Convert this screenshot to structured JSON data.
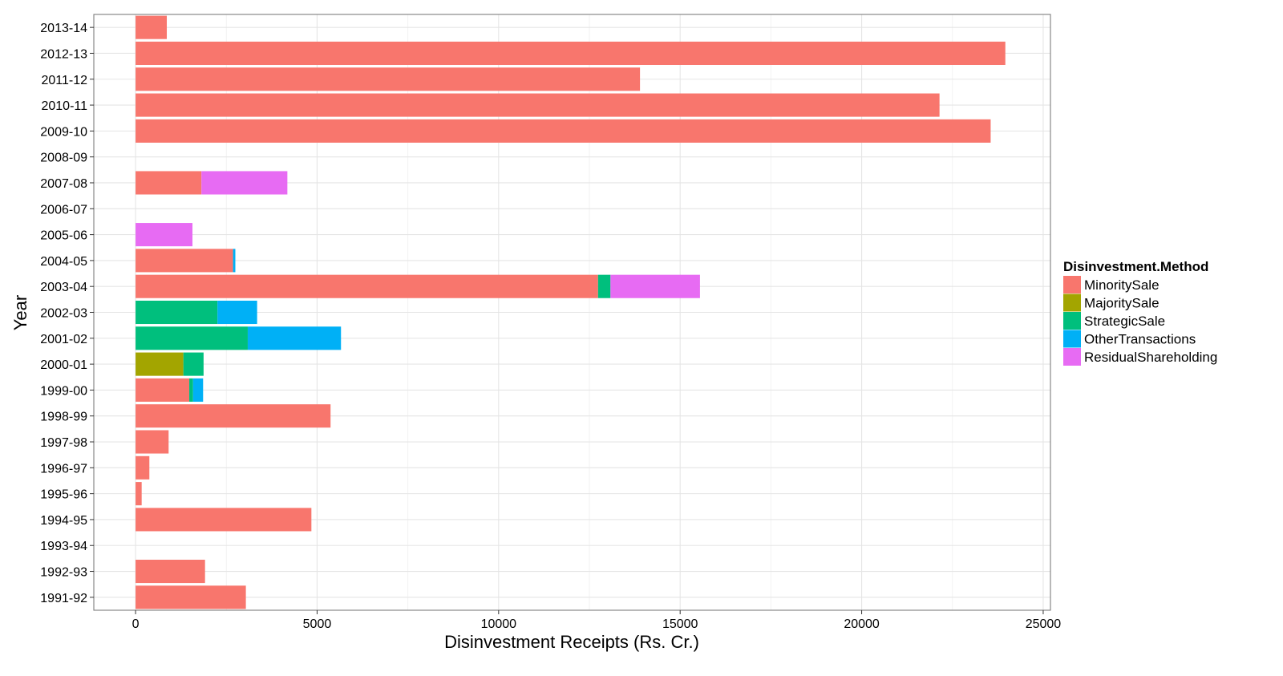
{
  "chart_data": {
    "type": "bar",
    "orientation": "horizontal",
    "stacked": true,
    "xlabel": "Disinvestment Receipts (Rs. Cr.)",
    "ylabel": "Year",
    "xlim": [
      -1150,
      25200
    ],
    "x_ticks": [
      0,
      5000,
      10000,
      15000,
      20000,
      25000
    ],
    "x_tick_labels": [
      "0",
      "5000",
      "10000",
      "15000",
      "20000",
      "25000"
    ],
    "grid": true,
    "legend_position": "right",
    "legend_title": "Disinvestment.Method",
    "categories": [
      "1991-92",
      "1992-93",
      "1993-94",
      "1994-95",
      "1995-96",
      "1996-97",
      "1997-98",
      "1998-99",
      "1999-00",
      "2000-01",
      "2001-02",
      "2002-03",
      "2003-04",
      "2004-05",
      "2005-06",
      "2006-07",
      "2007-08",
      "2008-09",
      "2009-10",
      "2010-11",
      "2011-12",
      "2012-13",
      "2013-14"
    ],
    "series": [
      {
        "name": "MinoritySale",
        "color": "#F8766D",
        "values": [
          3038,
          1913,
          0,
          4843,
          168,
          380,
          910,
          5371,
          1479,
          0,
          0,
          0,
          12739,
          2684,
          0,
          0,
          1814,
          0,
          23553,
          22144,
          13894,
          23957,
          860
        ]
      },
      {
        "name": "MajoritySale",
        "color": "#A3A500",
        "values": [
          0,
          0,
          0,
          0,
          0,
          0,
          0,
          0,
          0,
          1317,
          0,
          0,
          0,
          0,
          0,
          0,
          0,
          0,
          0,
          0,
          0,
          0,
          0
        ]
      },
      {
        "name": "StrategicSale",
        "color": "#00BF7D",
        "values": [
          0,
          0,
          0,
          0,
          0,
          0,
          0,
          0,
          105,
          556,
          3090,
          2256,
          342,
          0,
          0,
          0,
          0,
          0,
          0,
          0,
          0,
          0,
          0
        ]
      },
      {
        "name": "OtherTransactions",
        "color": "#00B0F6",
        "values": [
          0,
          0,
          0,
          0,
          0,
          0,
          0,
          0,
          276,
          0,
          2568,
          1092,
          0,
          64,
          0,
          0,
          0,
          0,
          0,
          0,
          0,
          0,
          0
        ]
      },
      {
        "name": "ResidualShareholding",
        "color": "#E76BF3",
        "values": [
          0,
          0,
          0,
          0,
          0,
          0,
          0,
          0,
          0,
          0,
          0,
          0,
          2465,
          0,
          1567,
          0,
          2367,
          0,
          0,
          0,
          0,
          0,
          0
        ]
      }
    ]
  }
}
